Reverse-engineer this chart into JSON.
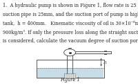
{
  "text_lines": [
    "1.  A hydraulic pump is shown in Figure 1, flow rate is 25 L/min, the diameter of",
    "suction pipe is 25mm, and the suction port of pump is higher than the oil surface of",
    "tank,  h = 400mm.   Kinematic viscosity of oil is 30×10⁻⁶m²/s, density of oil is",
    "900kg/m³. If only the pressure loss along the straight suction pipe with length 500mm",
    "is considered, calculate the vacuum degree of suction port. (λ = 75/Rₑ ,  α = 2)"
  ],
  "figure_label": "Figure 1",
  "bg_color": "#ffffff",
  "text_color": "#222222",
  "font_size": 4.8,
  "fig_label_size": 4.8,
  "line_color": "#555555",
  "oil_color": "#c8dce8",
  "filter_color": "#aaaaaa"
}
